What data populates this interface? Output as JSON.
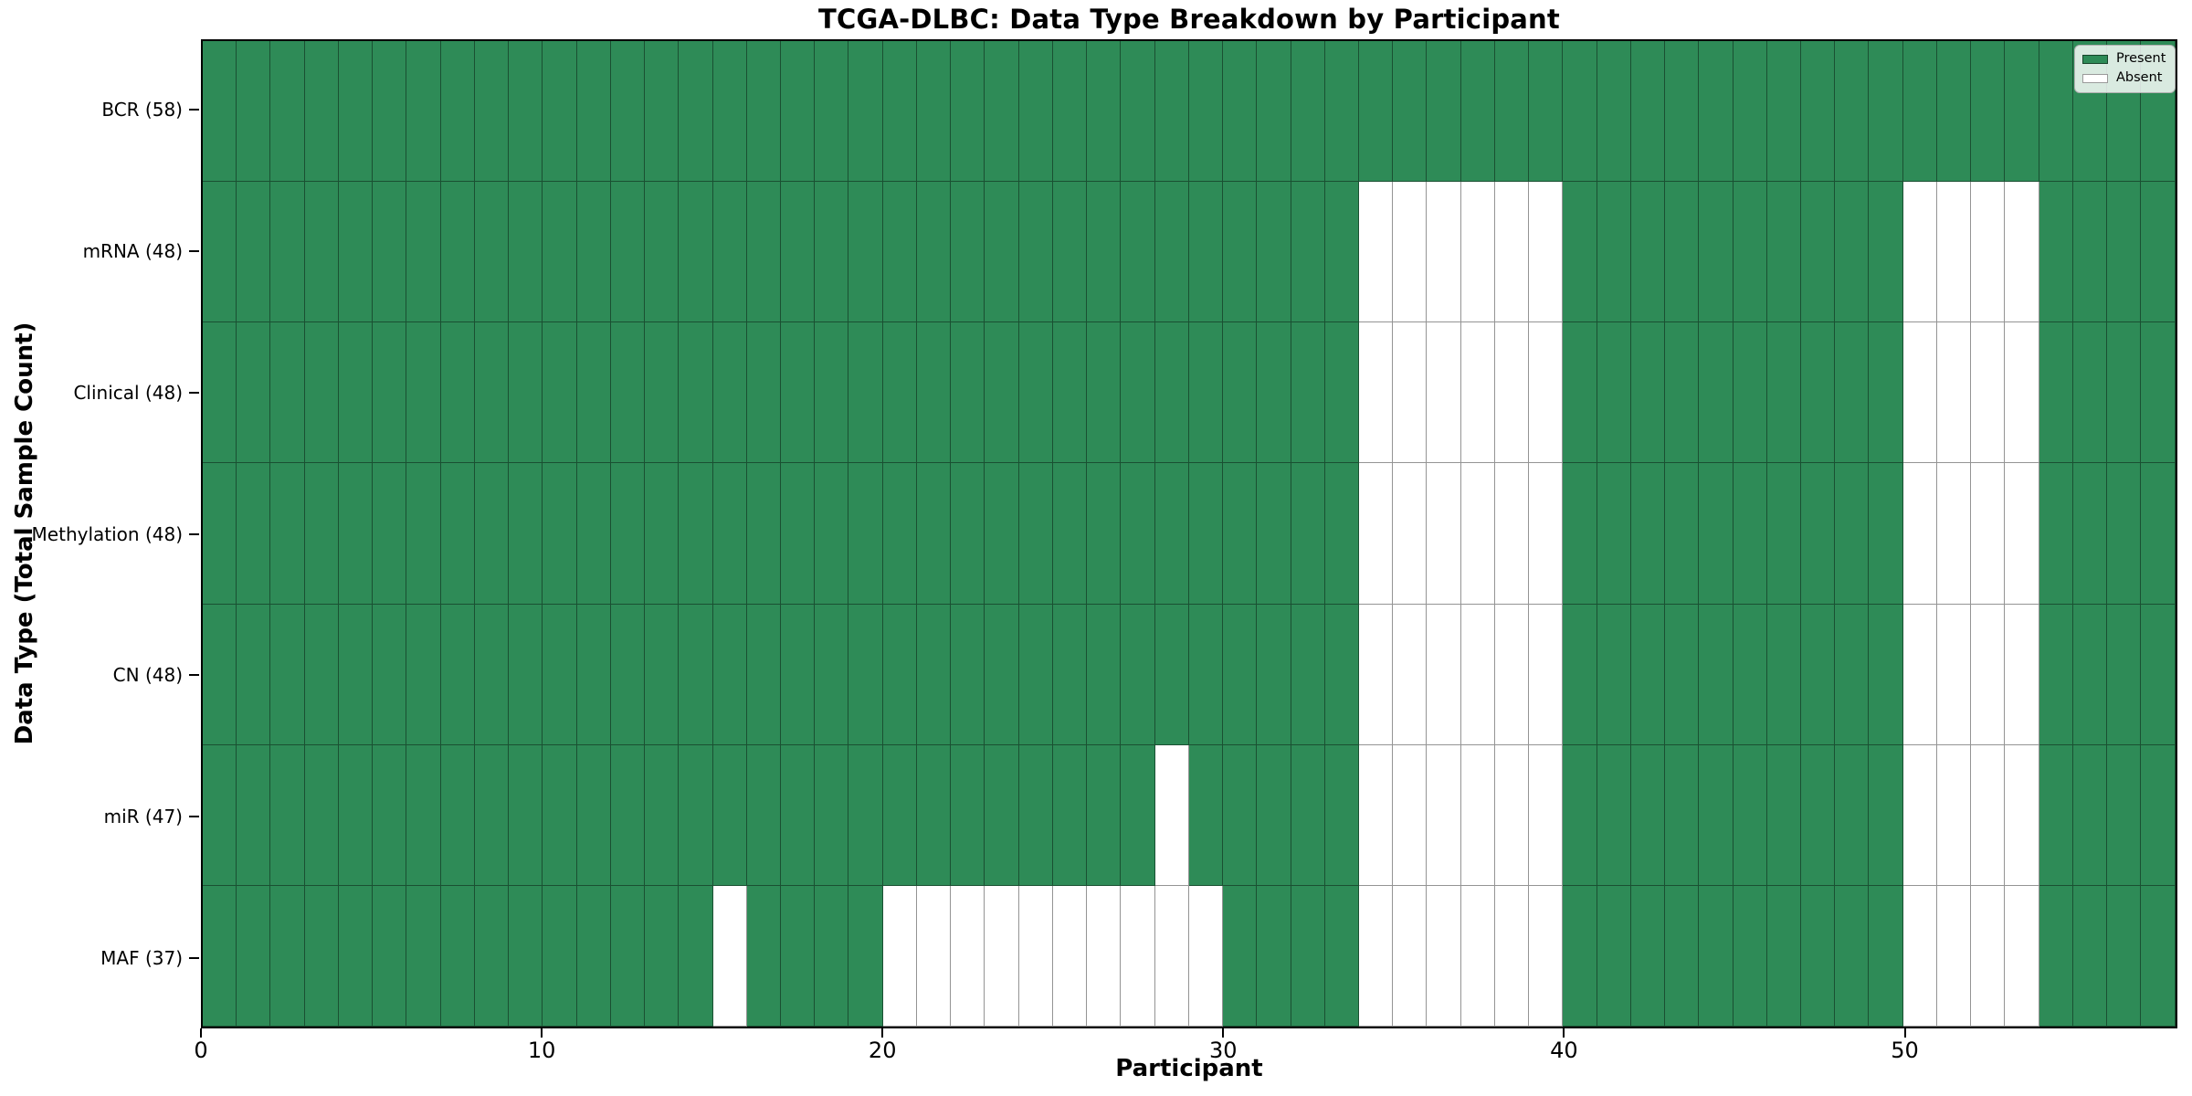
{
  "title": "TCGA-DLBC: Data Type Breakdown by Participant",
  "x_axis": {
    "label": "Participant",
    "ticks": [
      0,
      10,
      20,
      30,
      40,
      50
    ]
  },
  "y_axis": {
    "label": "Data Type (Total Sample Count)"
  },
  "legend": {
    "items": [
      {
        "label": "Present",
        "color": "#2e8b57"
      },
      {
        "label": "Absent",
        "color": "#ffffff"
      }
    ]
  },
  "chart_data": {
    "type": "heatmap",
    "title": "TCGA-DLBC: Data Type Breakdown by Participant",
    "xlabel": "Participant",
    "ylabel": "Data Type (Total Sample Count)",
    "x_range": [
      0,
      58
    ],
    "n_participants": 58,
    "x_ticks": [
      0,
      10,
      20,
      30,
      40,
      50
    ],
    "legend_position": "upper right",
    "grid": "cell-edges",
    "colors": {
      "present": "#2e8b57",
      "absent": "#ffffff",
      "cell_edge": "rgba(0,0,0,0.42)"
    },
    "value_encoding": {
      "present": "green cell",
      "absent": "white cell"
    },
    "rows": [
      {
        "label": "BCR (58)",
        "data_type": "BCR",
        "total_samples": 58,
        "absent_participants": []
      },
      {
        "label": "mRNA (48)",
        "data_type": "mRNA",
        "total_samples": 48,
        "absent_participants": [
          34,
          35,
          36,
          37,
          38,
          39,
          50,
          51,
          52,
          53
        ]
      },
      {
        "label": "Clinical (48)",
        "data_type": "Clinical",
        "total_samples": 48,
        "absent_participants": [
          34,
          35,
          36,
          37,
          38,
          39,
          50,
          51,
          52,
          53
        ]
      },
      {
        "label": "Methylation (48)",
        "data_type": "Methylation",
        "total_samples": 48,
        "absent_participants": [
          34,
          35,
          36,
          37,
          38,
          39,
          50,
          51,
          52,
          53
        ]
      },
      {
        "label": "CN (48)",
        "data_type": "CN",
        "total_samples": 48,
        "absent_participants": [
          34,
          35,
          36,
          37,
          38,
          39,
          50,
          51,
          52,
          53
        ]
      },
      {
        "label": "miR (47)",
        "data_type": "miR",
        "total_samples": 47,
        "absent_participants": [
          28,
          34,
          35,
          36,
          37,
          38,
          39,
          50,
          51,
          52,
          53
        ]
      },
      {
        "label": "MAF (37)",
        "data_type": "MAF",
        "total_samples": 37,
        "absent_participants": [
          15,
          20,
          21,
          22,
          23,
          24,
          25,
          26,
          27,
          28,
          29,
          34,
          35,
          36,
          37,
          38,
          39,
          50,
          51,
          52,
          53
        ]
      }
    ]
  }
}
